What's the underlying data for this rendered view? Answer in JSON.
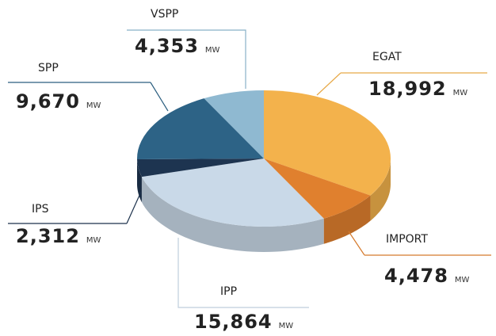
{
  "chart_data": {
    "type": "pie",
    "unit": "MW",
    "categories": [
      "EGAT",
      "IMPORT",
      "IPP",
      "IPS",
      "SPP",
      "VSPP"
    ],
    "values": [
      18992,
      4478,
      15864,
      2312,
      9670,
      4353
    ],
    "value_labels": [
      "18,992",
      "4,478",
      "15,864",
      "2,312",
      "9,670",
      "4,353"
    ],
    "colors": [
      "#f3b24c",
      "#e0802e",
      "#c9d9e8",
      "#1d3450",
      "#2d6386",
      "#8fb9d1"
    ]
  }
}
